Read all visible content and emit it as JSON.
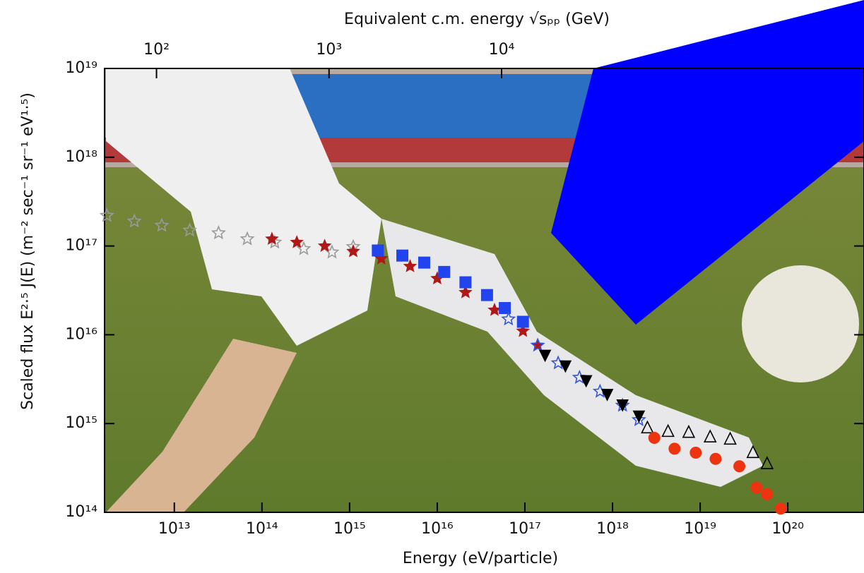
{
  "chart_data": {
    "type": "scatter",
    "log_x": true,
    "log_y": true,
    "log_x2": true,
    "xlabel": "Energy     (eV/particle)",
    "x2label": "Equivalent c.m. energy  √sₚₚ  (GeV)",
    "ylabel": "Scaled flux  E²·⁵ J(E)  (m⁻² sec⁻¹ sr⁻¹ eV¹·⁵)",
    "xlim": [
      1600000000000.0,
      7.4e+20
    ],
    "xticks": [
      {
        "value": 10000000000000.0,
        "label": "10¹³"
      },
      {
        "value": 100000000000000.0,
        "label": "10¹⁴"
      },
      {
        "value": 1000000000000000.0,
        "label": "10¹⁵"
      },
      {
        "value": 1e+16,
        "label": "10¹⁶"
      },
      {
        "value": 1e+17,
        "label": "10¹⁷"
      },
      {
        "value": 1e+18,
        "label": "10¹⁸"
      },
      {
        "value": 1e+19,
        "label": "10¹⁹"
      },
      {
        "value": 1e+20,
        "label": "10²⁰"
      }
    ],
    "x2lim": [
      50,
      1260000.0
    ],
    "x2ticks": [
      {
        "value": 100,
        "label": "10²"
      },
      {
        "value": 1000,
        "label": "10³"
      },
      {
        "value": 10000,
        "label": "10⁴"
      }
    ],
    "ylim": [
      100000000000000.0,
      1e+19
    ],
    "yticks": [
      {
        "value": 100000000000000.0,
        "label": "10¹⁴"
      },
      {
        "value": 1000000000000000.0,
        "label": "10¹⁵"
      },
      {
        "value": 1e+16,
        "label": "10¹⁶"
      },
      {
        "value": 1e+17,
        "label": "10¹⁷"
      },
      {
        "value": 1e+18,
        "label": "10¹⁸"
      },
      {
        "value": 1e+19,
        "label": "10¹⁹"
      }
    ],
    "series": [
      {
        "color": "#9a9a9a",
        "marker": "star-open",
        "x": [
          1700000000000.0,
          3500000000000.0,
          7200000000000.0,
          15000000000000.0,
          32000000000000.0,
          68000000000000.0,
          140000000000000.0,
          300000000000000.0,
          630000000000000.0,
          1100000000000000.0
        ],
        "values": [
          2.2e+17,
          1.9e+17,
          1.7e+17,
          1.5e+17,
          1.4e+17,
          1.2e+17,
          1.1e+17,
          9.3e+16,
          8.5e+16,
          9.8e+16
        ]
      },
      {
        "color": "#b01818",
        "marker": "star",
        "x": [
          130000000000000.0,
          250000000000000.0,
          520000000000000.0,
          1100000000000000.0,
          2300000000000000.0,
          4900000000000000.0,
          1e+16,
          2.1e+16,
          4.5e+16,
          9.5e+16,
          1.4e+17
        ],
        "values": [
          1.2e+17,
          1.1e+17,
          1e+17,
          8.7e+16,
          7.2e+16,
          5.9e+16,
          4.3e+16,
          3e+16,
          1.9e+16,
          1.1e+16,
          7600000000000000.0
        ]
      },
      {
        "color": "#2244ee",
        "marker": "square",
        "x": [
          2100000000000000.0,
          4000000000000000.0,
          7100000000000000.0,
          1.2e+16,
          2.1e+16,
          3.7e+16,
          5.9e+16,
          9.5e+16
        ],
        "values": [
          8.9e+16,
          7.8e+16,
          6.5e+16,
          5.1e+16,
          3.9e+16,
          2.8e+16,
          2e+16,
          1.4e+16
        ]
      },
      {
        "color": "#3355dd",
        "marker": "star-open",
        "x": [
          6.5e+16,
          1.4e+17,
          2.4e+17,
          4.2e+17,
          7.2e+17,
          1.3e+18,
          2e+18
        ],
        "values": [
          1.5e+16,
          7600000000000000.0,
          4800000000000000.0,
          3300000000000000.0,
          2300000000000000.0,
          1600000000000000.0,
          1100000000000000.0
        ]
      },
      {
        "color": "#000000",
        "marker": "triangle-down",
        "x": [
          1.7e+17,
          2.9e+17,
          5e+17,
          8.7e+17,
          1.3e+18,
          2e+18
        ],
        "values": [
          5800000000000000.0,
          4400000000000000.0,
          3000000000000000.0,
          2100000000000000.0,
          1600000000000000.0,
          1200000000000000.0
        ]
      },
      {
        "color": "#000000",
        "marker": "triangle-up-open",
        "x": [
          2.5e+18,
          4.3e+18,
          7.4e+18,
          1.3e+19,
          2.2e+19,
          4e+19,
          5.8e+19
        ],
        "values": [
          910000000000000.0,
          830000000000000.0,
          810000000000000.0,
          720000000000000.0,
          680000000000000.0,
          480000000000000.0,
          360000000000000.0
        ]
      },
      {
        "color": "#ee3311",
        "marker": "circle",
        "x": [
          3e+18,
          5.1e+18,
          8.9e+18,
          1.5e+19,
          2.8e+19,
          4.4e+19,
          5.8e+19,
          8.3e+19
        ],
        "values": [
          690000000000000.0,
          520000000000000.0,
          470000000000000.0,
          400000000000000.0,
          330000000000000.0,
          190000000000000.0,
          160000000000000.0,
          110000000000000.0
        ]
      }
    ]
  }
}
